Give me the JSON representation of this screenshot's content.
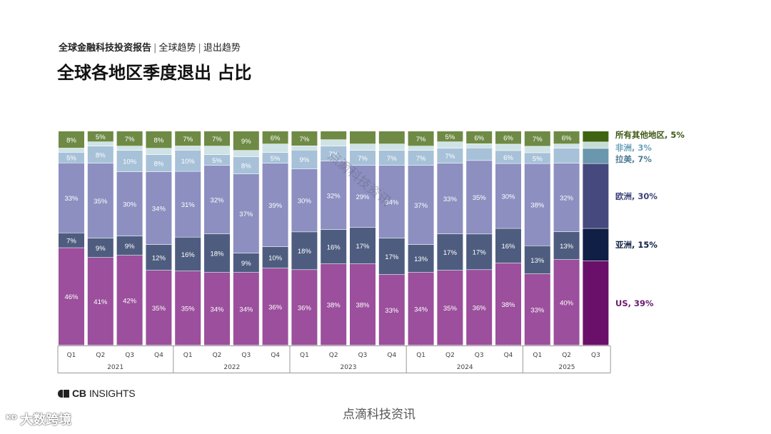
{
  "header": {
    "breadcrumb_report": "全球金融科技投资报告",
    "breadcrumb_sep": "|",
    "breadcrumb_section": "全球趋势",
    "breadcrumb_topic": "退出趋势",
    "title": "全球各地区季度退出 占比"
  },
  "footer": {
    "brand_cb": "CB",
    "brand_insights": "INSIGHTS",
    "watermark_center": "点滴科技资讯",
    "watermark_corner": "大数跨境",
    "watermark_corner_mark": "ᴷᴰ"
  },
  "overlay_watermark": "点滴科技资讯",
  "colors": {
    "US": "#9b4f9c",
    "亚洲": "#4e5d7f",
    "欧洲": "#8c8fc0",
    "拉美": "#a7c1d8",
    "非洲": "#cfe3e7",
    "所有其他地区": "#6e8a45",
    "US_q3": "#6a0f6a",
    "亚洲_q3": "#0f1f45",
    "欧洲_q3": "#46497e",
    "拉美_q3": "#6a97ad",
    "非洲_q3": "#c6ddd7",
    "所有其他地区_q3": "#3e6412",
    "legend_US": "#6a1a6e",
    "legend_亚洲": "#0f1f45",
    "legend_欧洲": "#3d4278",
    "legend_拉美": "#4f7c95",
    "legend_非洲": "#6aa0b8",
    "legend_所有其他地区": "#3e5a14"
  },
  "chart_data": {
    "type": "bar",
    "stacked": true,
    "categories": [
      "Q1",
      "Q2",
      "Q3",
      "Q4",
      "Q1",
      "Q2",
      "Q3",
      "Q4",
      "Q1",
      "Q2",
      "Q3",
      "Q4",
      "Q1",
      "Q2",
      "Q3",
      "Q4",
      "Q1",
      "Q2",
      "Q3"
    ],
    "year_groups": [
      {
        "label": "2021",
        "count": 4
      },
      {
        "label": "2022",
        "count": 4
      },
      {
        "label": "2023",
        "count": 4
      },
      {
        "label": "2024",
        "count": 4
      },
      {
        "label": "2025",
        "count": 3
      }
    ],
    "series": [
      {
        "name": "US",
        "values": [
          46,
          41,
          42,
          35,
          35,
          34,
          34,
          36,
          36,
          38,
          38,
          33,
          34,
          35,
          36,
          38,
          33,
          40,
          39
        ],
        "labels": [
          "46%",
          "41%",
          "42%",
          "35%",
          "35%",
          "34%",
          "34%",
          "36%",
          "36%",
          "38%",
          "38%",
          "33%",
          "34%",
          "35%",
          "36%",
          "38%",
          "33%",
          "40%",
          ""
        ]
      },
      {
        "name": "亚洲",
        "values": [
          7,
          9,
          9,
          12,
          16,
          18,
          9,
          10,
          18,
          16,
          17,
          17,
          13,
          17,
          17,
          16,
          13,
          13,
          15
        ],
        "labels": [
          "7%",
          "9%",
          "9%",
          "12%",
          "16%",
          "18%",
          "9%",
          "10%",
          "18%",
          "16%",
          "17%",
          "17%",
          "13%",
          "17%",
          "17%",
          "16%",
          "13%",
          "13%",
          ""
        ]
      },
      {
        "name": "欧洲",
        "values": [
          33,
          35,
          30,
          34,
          31,
          32,
          37,
          39,
          30,
          32,
          29,
          34,
          37,
          33,
          35,
          30,
          38,
          32,
          30
        ],
        "labels": [
          "33%",
          "35%",
          "30%",
          "34%",
          "31%",
          "32%",
          "37%",
          "39%",
          "30%",
          "32%",
          "29%",
          "34%",
          "37%",
          "33%",
          "35%",
          "30%",
          "38%",
          "32%",
          ""
        ]
      },
      {
        "name": "拉美",
        "values": [
          5,
          8,
          10,
          8,
          10,
          5,
          8,
          5,
          9,
          7,
          7,
          7,
          7,
          7,
          6,
          6,
          5,
          7,
          7
        ],
        "labels": [
          "5%",
          "8%",
          "10%",
          "8%",
          "10%",
          "5%",
          "8%",
          "5%",
          "9%",
          "7%",
          "7%",
          "7%",
          "7%",
          "7%",
          "",
          "6%",
          "5%",
          "",
          ""
        ]
      },
      {
        "name": "非洲",
        "values": [
          2,
          2,
          2,
          3,
          2,
          4,
          3,
          4,
          2,
          3,
          3,
          3,
          2,
          3,
          2,
          3,
          3,
          2,
          3
        ],
        "labels": [
          "",
          "",
          "",
          "",
          "",
          "",
          "",
          "",
          "",
          "",
          "",
          "",
          "",
          "",
          "",
          "",
          "",
          "",
          ""
        ]
      },
      {
        "name": "所有其他地区",
        "values": [
          8,
          5,
          7,
          8,
          7,
          7,
          9,
          6,
          7,
          4,
          6,
          6,
          7,
          5,
          6,
          6,
          7,
          6,
          5
        ],
        "labels": [
          "8%",
          "5%",
          "7%",
          "8%",
          "7%",
          "7%",
          "9%",
          "6%",
          "7%",
          "",
          "",
          "",
          "7%",
          "5%",
          "6%",
          "6%",
          "7%",
          "6%",
          ""
        ]
      }
    ],
    "legend": [
      {
        "series": "所有其他地区",
        "text": "所有其他地区, 5%"
      },
      {
        "series": "非洲",
        "text": "非洲, 3%"
      },
      {
        "series": "拉美",
        "text": "拉美, 7%"
      },
      {
        "series": "欧洲",
        "text": "欧洲, 30%"
      },
      {
        "series": "亚洲",
        "text": "亚洲, 15%"
      },
      {
        "series": "US",
        "text": "US, 39%"
      }
    ],
    "legend_placement": "right",
    "ylim": [
      0,
      100
    ],
    "grid": false
  }
}
